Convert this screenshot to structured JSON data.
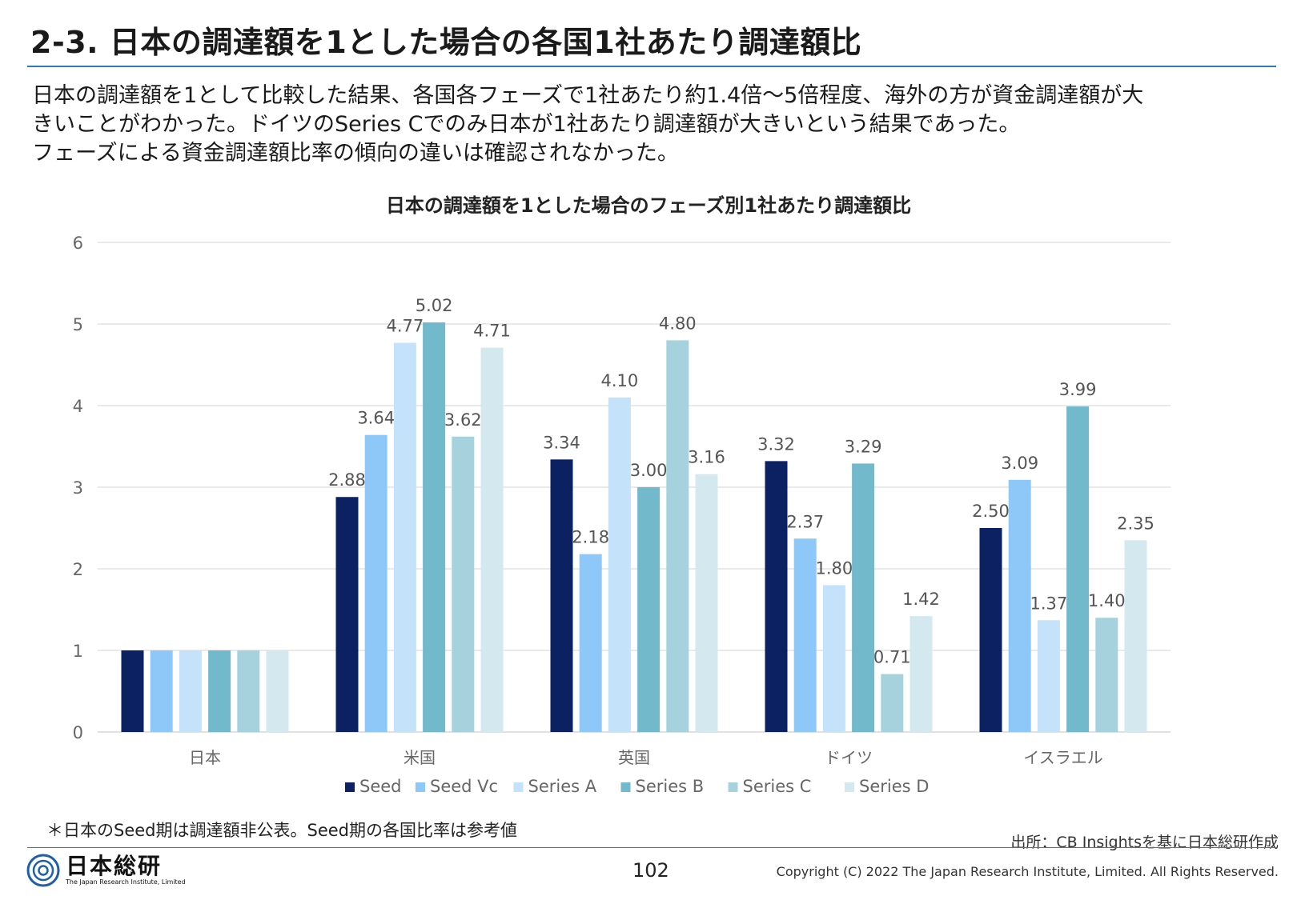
{
  "page": {
    "title": "2-3. 日本の調達額を1とした場合の各国1社あたり調達額比",
    "summary_lines": [
      "日本の調達額を1として比較した結果、各国各フェーズで1社あたり約1.4倍～5倍程度、海外の方が資金調達額が大",
      "きいことがわかった。ドイツのSeries Cでのみ日本が1社あたり調達額が大きいという結果であった。",
      "フェーズによる資金調達額比率の傾向の違いは確認されなかった。"
    ],
    "footnote": "＊日本のSeed期は調達額非公表。Seed期の各国比率は参考値",
    "source": "出所：CB Insightsを基に日本総研作成",
    "page_number": "102",
    "copyright": "Copyright (C) 2022 The Japan Research Institute, Limited. All Rights Reserved.",
    "logo": {
      "name": "日本総研",
      "english": "The Japan Research Institute, Limited",
      "icon": "jri-swirl-logo"
    }
  },
  "chart_data": {
    "type": "bar",
    "title": "日本の調達額を1とした場合のフェーズ別1社あたり調達額比",
    "xlabel": "",
    "ylabel": "",
    "categories": [
      "日本",
      "米国",
      "英国",
      "ドイツ",
      "イスラエル"
    ],
    "ylim": [
      0,
      6
    ],
    "yticks": [
      "0",
      "1",
      "2",
      "3",
      "4",
      "5",
      "6"
    ],
    "grid": true,
    "legend_position": "bottom",
    "series": [
      {
        "name": "Seed",
        "color": "#0b2161",
        "values": [
          1,
          2.88,
          3.34,
          3.32,
          2.5
        ],
        "labels": [
          "",
          "2.88",
          "3.34",
          "3.32",
          "2.50"
        ]
      },
      {
        "name": "Seed Vc",
        "color": "#8ec8f8",
        "values": [
          1,
          3.64,
          2.18,
          2.37,
          3.09
        ],
        "labels": [
          "",
          "3.64",
          "2.18",
          "2.37",
          "3.09"
        ]
      },
      {
        "name": "Series A",
        "color": "#c4e3fa",
        "values": [
          1,
          4.77,
          4.1,
          1.8,
          1.37
        ],
        "labels": [
          "",
          "4.77",
          "4.10",
          "1.80",
          "1.37"
        ]
      },
      {
        "name": "Series B",
        "color": "#72b9cc",
        "values": [
          1,
          5.02,
          3.0,
          3.29,
          3.99
        ],
        "labels": [
          "",
          "5.02",
          "3.00",
          "3.29",
          "3.99"
        ]
      },
      {
        "name": "Series  C",
        "color": "#a6d2de",
        "values": [
          1,
          3.62,
          4.8,
          0.71,
          1.4
        ],
        "labels": [
          "",
          "3.62",
          "4.80",
          "0.71",
          "1.40"
        ]
      },
      {
        "name": "Series D",
        "color": "#d3e8ef",
        "values": [
          1,
          4.71,
          3.16,
          1.42,
          2.35
        ],
        "labels": [
          "",
          "4.71",
          "3.16",
          "1.42",
          "2.35"
        ]
      }
    ]
  }
}
